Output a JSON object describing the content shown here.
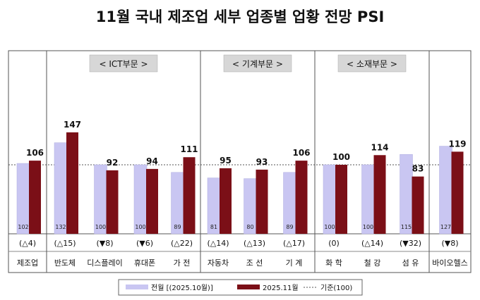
{
  "title": "11월 국내 제조업 세부 업종별 업황 전망 PSI",
  "legend": {
    "prev": "전월 [(2025.10월)]",
    "curr": "2025.11월",
    "base": "기준(100)"
  },
  "groups": [
    "< ICT부문 >",
    "< 기계부문 >",
    "< 소재부문 >"
  ],
  "colors": {
    "prev": "#c9c6f2",
    "curr": "#7b0f17",
    "base": "#555555"
  },
  "chart_data": {
    "type": "bar",
    "title": "11월 국내 제조업 세부 업종별 업황 전망 PSI",
    "xlabel": "",
    "ylabel": "",
    "baseline": 100,
    "categories": [
      "제조업",
      "반도체",
      "디스플레이",
      "휴대폰",
      "가 전",
      "자동차",
      "조 선",
      "기 계",
      "화 학",
      "철 강",
      "섬 유",
      "바이오헬스"
    ],
    "series": [
      {
        "name": "전월 [(2025.10월)]",
        "values": [
          102,
          132,
          100,
          100,
          89,
          81,
          80,
          89,
          100,
          100,
          115,
          127
        ]
      },
      {
        "name": "2025.11월",
        "values": [
          106,
          147,
          92,
          94,
          111,
          95,
          93,
          106,
          100,
          114,
          83,
          119
        ]
      }
    ],
    "changes": [
      "(△4)",
      "(△15)",
      "(▼8)",
      "(▼6)",
      "(△22)",
      "(△14)",
      "(△13)",
      "(△17)",
      "(0)",
      "(△14)",
      "(▼32)",
      "(▼8)"
    ]
  }
}
